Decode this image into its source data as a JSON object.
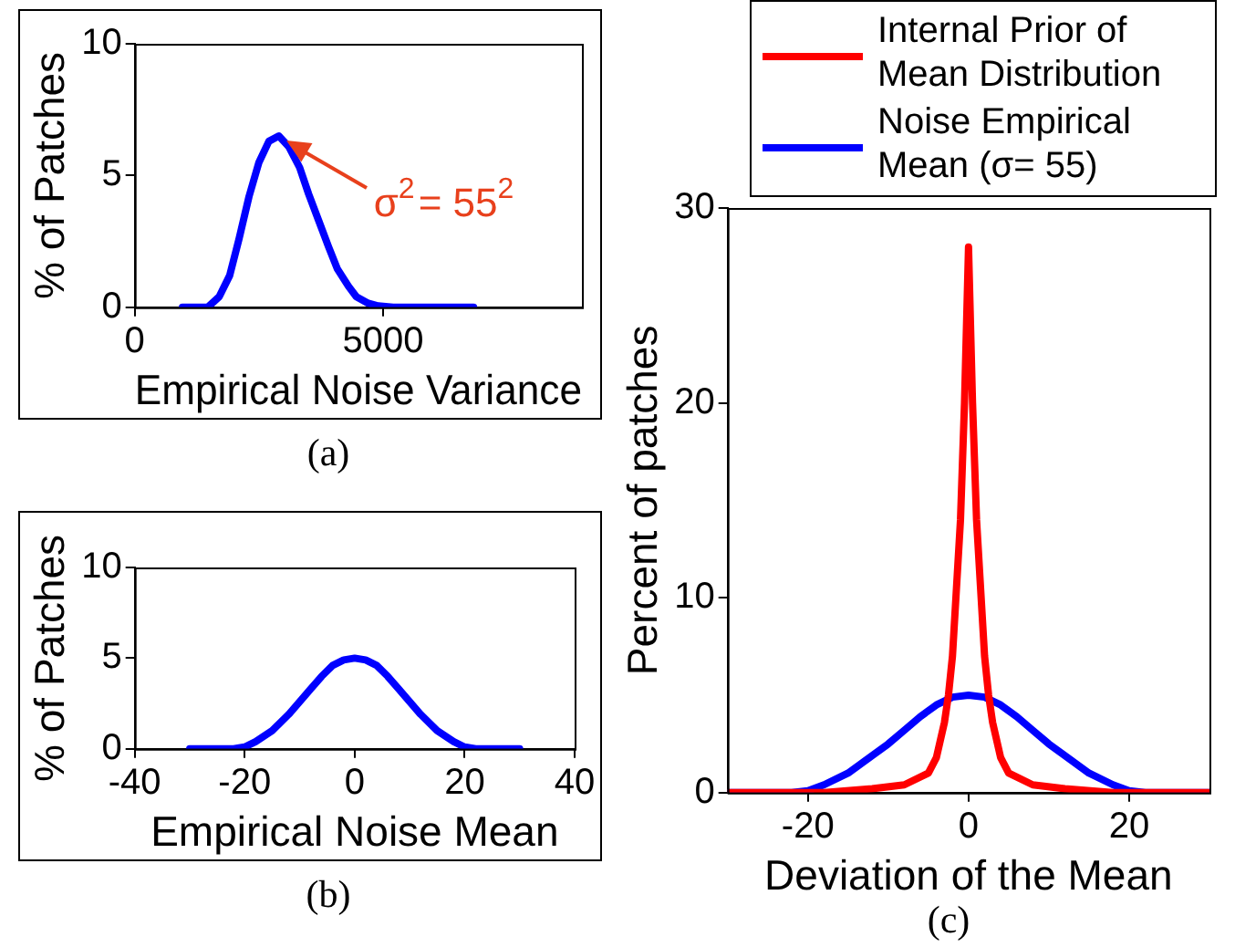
{
  "chart_data": [
    {
      "type": "line",
      "xlabel": "Empirical Noise Variance",
      "ylabel": "% of Patches",
      "xlim": [
        0,
        9000
      ],
      "xticks": [
        0,
        5000
      ],
      "ylim": [
        0,
        10
      ],
      "yticks": [
        0,
        5,
        10
      ],
      "x": [
        960,
        1470,
        1700,
        1910,
        2100,
        2300,
        2500,
        2700,
        2900,
        3100,
        3320,
        3500,
        3700,
        3900,
        4080,
        4300,
        4460,
        4700,
        4900,
        5200,
        6820
      ],
      "series": [
        {
          "color": "#0000ff",
          "values": [
            0,
            0,
            0.4,
            1.2,
            2.6,
            4.2,
            5.5,
            6.3,
            6.5,
            6.1,
            5.3,
            4.3,
            3.3,
            2.3,
            1.45,
            0.8,
            0.4,
            0.15,
            0.05,
            0,
            0
          ]
        }
      ],
      "annotations": [
        {
          "text": "σ$^{2}$= 55$^{2}$",
          "x": 2900,
          "y": 6.5
        },
        "(a)"
      ]
    },
    {
      "type": "line",
      "xlabel": "Empirical Noise Mean",
      "ylabel": "% of Patches",
      "xlim": [
        -40,
        40
      ],
      "xticks": [
        -40,
        -20,
        0,
        20,
        40
      ],
      "ylim": [
        0,
        10
      ],
      "yticks": [
        0,
        5,
        10
      ],
      "x": [
        -30,
        -22,
        -20,
        -18,
        -15,
        -12,
        -10,
        -8,
        -6,
        -4,
        -2,
        0,
        2,
        4,
        6,
        8,
        10,
        12,
        15,
        18,
        20,
        22,
        30
      ],
      "series": [
        {
          "color": "#0000ff",
          "values": [
            0,
            0,
            0.1,
            0.4,
            1.0,
            1.9,
            2.6,
            3.3,
            4.0,
            4.6,
            4.9,
            5.0,
            4.9,
            4.6,
            4.0,
            3.3,
            2.6,
            1.9,
            1.0,
            0.4,
            0.1,
            0,
            0
          ]
        }
      ],
      "annotations": [
        "(b)"
      ]
    },
    {
      "type": "line",
      "xlabel": "Deviation of the Mean",
      "ylabel": "Percent of patches",
      "xlim": [
        -30,
        30
      ],
      "xticks": [
        -20,
        0,
        20
      ],
      "ylim": [
        0,
        30
      ],
      "yticks": [
        0,
        10,
        20,
        30
      ],
      "legend": "top right",
      "series": [
        {
          "name": "Internal Prior of Mean Distribution",
          "color": "#ff0000",
          "x": [
            -30,
            -18,
            -12,
            -8,
            -5,
            -4,
            -3,
            -2.5,
            -2,
            -1.5,
            -1,
            -0.5,
            0,
            0.5,
            1,
            1.5,
            2,
            2.5,
            3,
            4,
            5,
            8,
            12,
            18,
            30
          ],
          "values": [
            0,
            0,
            0.2,
            0.4,
            1.0,
            1.8,
            3.6,
            5,
            7,
            10.5,
            14,
            20,
            28,
            20,
            14,
            10.5,
            7,
            5,
            3.6,
            1.8,
            1.0,
            0.4,
            0.2,
            0,
            0
          ]
        },
        {
          "name": "Noise Empirical Mean (σ= 55)",
          "color": "#0000ff",
          "x": [
            -30,
            -22,
            -20,
            -18,
            -15,
            -12,
            -10,
            -8,
            -6,
            -4,
            -2,
            0,
            2,
            4,
            6,
            8,
            10,
            12,
            15,
            18,
            20,
            22,
            30
          ],
          "values": [
            0,
            0,
            0.1,
            0.4,
            1.0,
            1.9,
            2.5,
            3.2,
            3.9,
            4.5,
            4.9,
            5.0,
            4.9,
            4.5,
            3.9,
            3.2,
            2.5,
            1.9,
            1.0,
            0.4,
            0.1,
            0,
            0
          ]
        }
      ],
      "annotations": [
        "(c)"
      ]
    }
  ]
}
